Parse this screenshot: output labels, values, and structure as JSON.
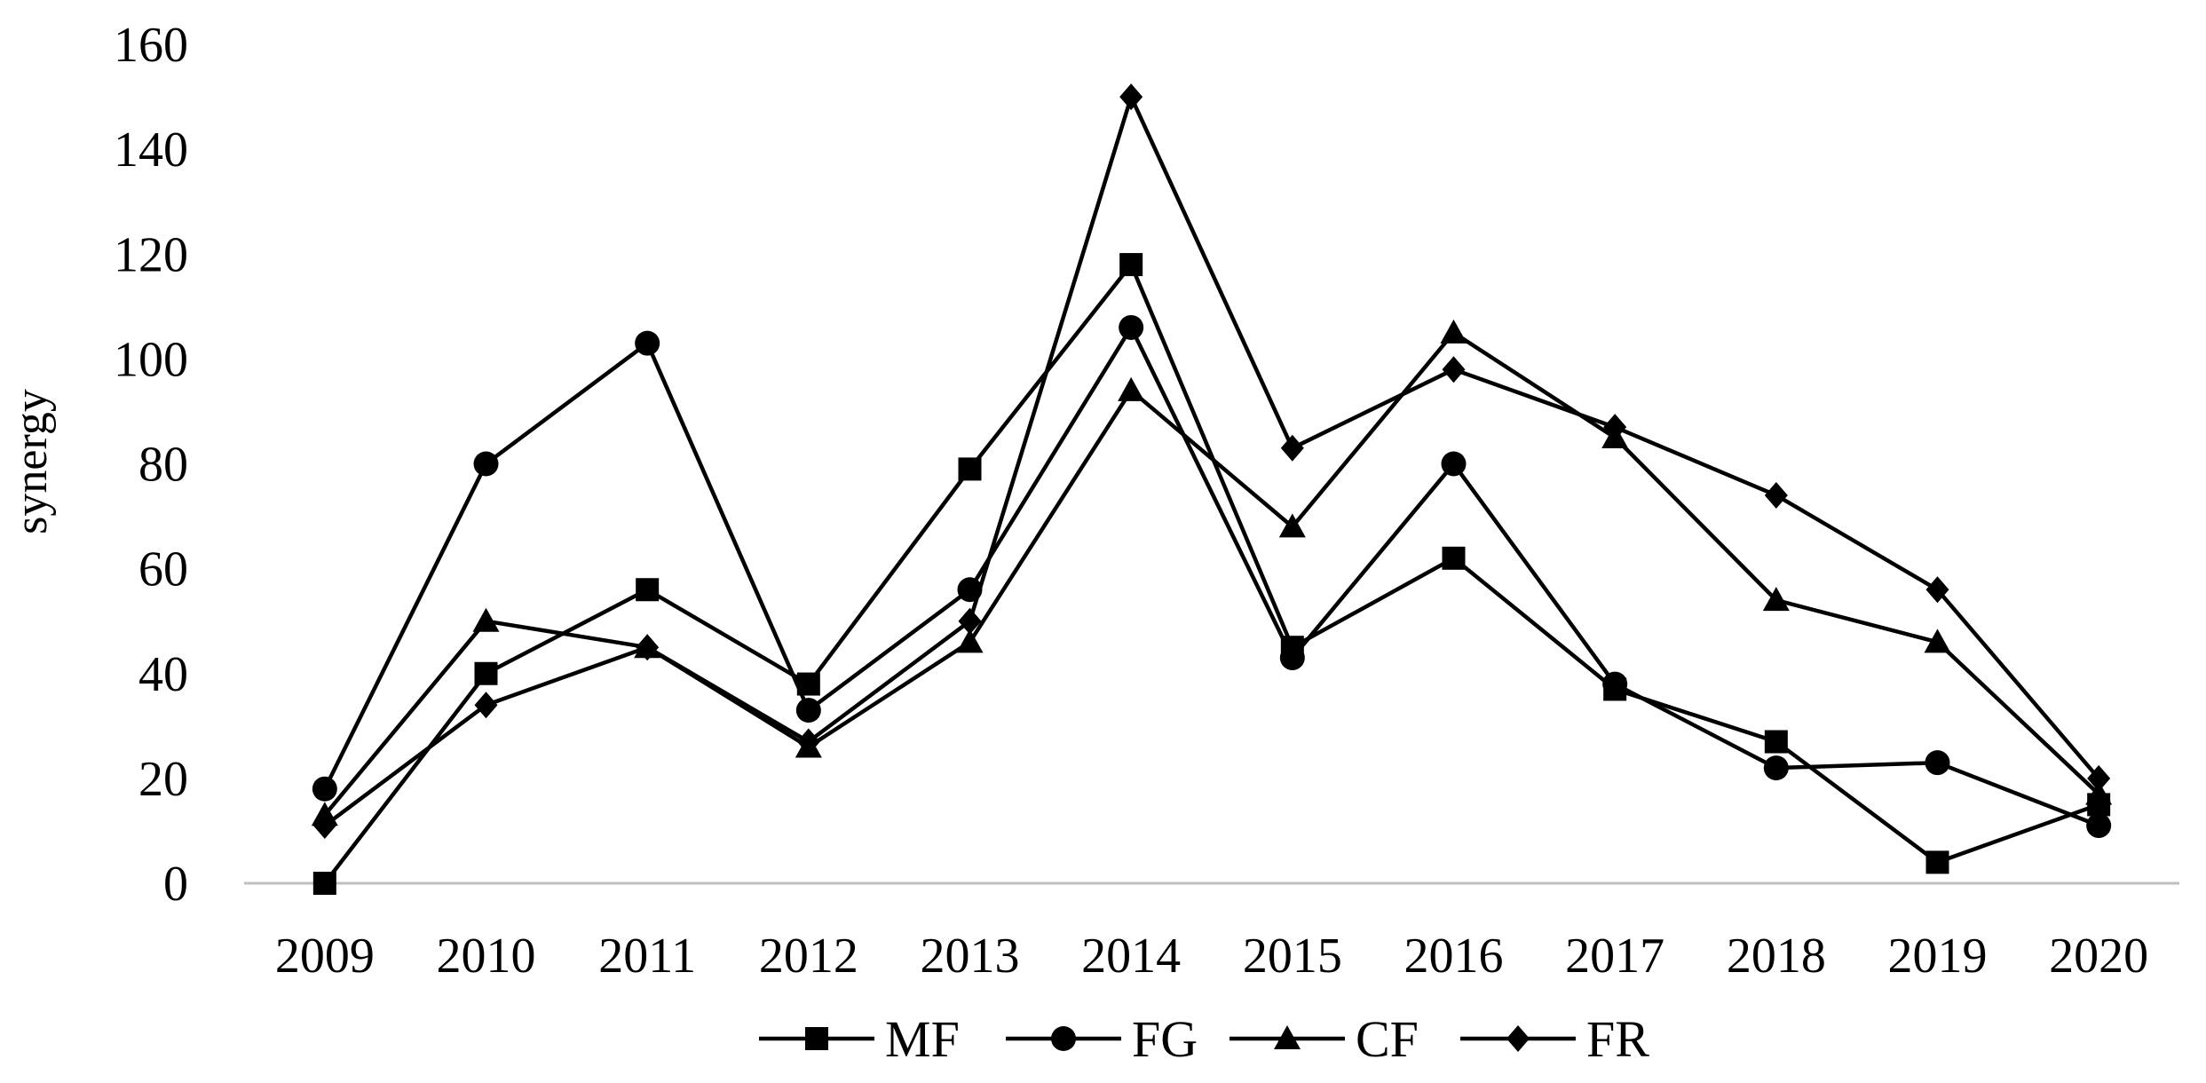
{
  "chart_data": {
    "type": "line",
    "title": "",
    "xlabel": "",
    "ylabel": "synergy",
    "ylim": [
      0,
      160
    ],
    "yticks": [
      0,
      20,
      40,
      60,
      80,
      100,
      120,
      140,
      160
    ],
    "categories": [
      "2009",
      "2010",
      "2011",
      "2012",
      "2013",
      "2014",
      "2015",
      "2016",
      "2017",
      "2018",
      "2019",
      "2020"
    ],
    "grid": false,
    "legend_position": "bottom",
    "series": [
      {
        "name": "MF",
        "marker": "square",
        "values": [
          0,
          40,
          56,
          38,
          79,
          118,
          45,
          62,
          37,
          27,
          4,
          15
        ]
      },
      {
        "name": "FG",
        "marker": "circle",
        "values": [
          18,
          80,
          103,
          33,
          56,
          106,
          43,
          80,
          38,
          22,
          23,
          11
        ]
      },
      {
        "name": "CF",
        "marker": "triangle",
        "values": [
          13,
          50,
          45,
          26,
          46,
          94,
          68,
          105,
          85,
          54,
          46,
          17
        ]
      },
      {
        "name": "FR",
        "marker": "diamond",
        "values": [
          11,
          34,
          45,
          27,
          50,
          150,
          83,
          98,
          87,
          74,
          56,
          20
        ]
      }
    ]
  }
}
